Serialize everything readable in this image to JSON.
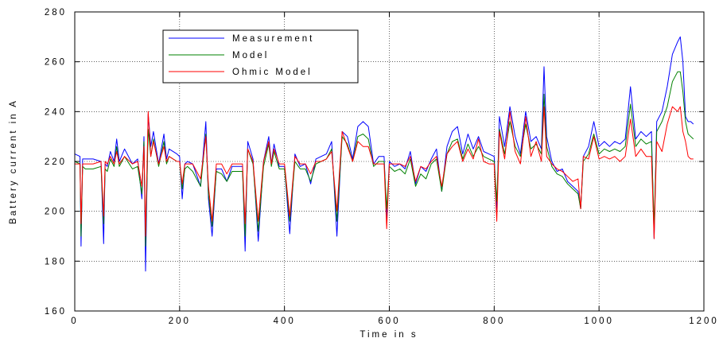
{
  "chart_data": {
    "type": "line",
    "title": "",
    "xlabel": "Time in s",
    "ylabel": "Battery current in A",
    "xlim": [
      0,
      1200
    ],
    "ylim": [
      160,
      280
    ],
    "xticks": [
      0,
      200,
      400,
      600,
      800,
      1000,
      1200
    ],
    "yticks": [
      160,
      180,
      200,
      220,
      240,
      260,
      280
    ],
    "grid": true,
    "legend_position": "top-left",
    "series": [
      {
        "name": "Measurement",
        "color": "#0000ff",
        "x": [
          0,
          10,
          12,
          15,
          20,
          35,
          50,
          55,
          58,
          62,
          68,
          75,
          80,
          85,
          95,
          110,
          120,
          128,
          132,
          135,
          140,
          145,
          150,
          160,
          170,
          175,
          180,
          195,
          200,
          205,
          210,
          215,
          225,
          240,
          250,
          255,
          262,
          270,
          280,
          290,
          300,
          320,
          325,
          330,
          340,
          350,
          360,
          370,
          375,
          380,
          390,
          400,
          410,
          420,
          430,
          440,
          450,
          460,
          470,
          480,
          490,
          500,
          510,
          520,
          530,
          540,
          550,
          560,
          570,
          580,
          590,
          595,
          600,
          610,
          620,
          630,
          640,
          650,
          660,
          670,
          680,
          690,
          700,
          710,
          720,
          730,
          740,
          750,
          760,
          770,
          780,
          790,
          800,
          805,
          810,
          820,
          830,
          840,
          850,
          860,
          870,
          880,
          890,
          895,
          900,
          910,
          920,
          930,
          940,
          950,
          960,
          965,
          970,
          980,
          990,
          1000,
          1010,
          1020,
          1030,
          1040,
          1050,
          1060,
          1070,
          1080,
          1090,
          1100,
          1105,
          1110,
          1120,
          1130,
          1140,
          1150,
          1155,
          1160,
          1165,
          1170,
          1175,
          1180
        ],
        "y": [
          223,
          222,
          186,
          221,
          221,
          221,
          220,
          187,
          219,
          218,
          224,
          220,
          229,
          220,
          225,
          219,
          221,
          205,
          230,
          176,
          239,
          226,
          232,
          219,
          231,
          221,
          225,
          223,
          222,
          205,
          219,
          220,
          219,
          210,
          236,
          205,
          190,
          217,
          217,
          212,
          218,
          218,
          184,
          228,
          221,
          188,
          220,
          230,
          219,
          227,
          218,
          218,
          191,
          223,
          218,
          219,
          211,
          221,
          222,
          223,
          228,
          190,
          232,
          230,
          221,
          234,
          236,
          234,
          219,
          222,
          222,
          197,
          220,
          218,
          219,
          217,
          224,
          211,
          218,
          216,
          221,
          225,
          208,
          226,
          232,
          234,
          223,
          231,
          225,
          230,
          224,
          223,
          222,
          200,
          238,
          226,
          242,
          230,
          223,
          240,
          228,
          230,
          225,
          258,
          230,
          220,
          216,
          217,
          212,
          210,
          208,
          201,
          222,
          226,
          236,
          226,
          228,
          226,
          228,
          227,
          229,
          250,
          229,
          232,
          230,
          232,
          189,
          236,
          240,
          250,
          263,
          268,
          270,
          260,
          238,
          236,
          236,
          235
        ]
      },
      {
        "name": "Model",
        "color": "#008000",
        "x": [
          0,
          10,
          12,
          15,
          20,
          35,
          50,
          55,
          58,
          62,
          68,
          75,
          80,
          85,
          95,
          110,
          120,
          128,
          132,
          135,
          140,
          145,
          150,
          160,
          170,
          175,
          180,
          195,
          200,
          205,
          210,
          215,
          225,
          240,
          250,
          255,
          262,
          270,
          280,
          290,
          300,
          320,
          325,
          330,
          340,
          350,
          360,
          370,
          375,
          380,
          390,
          400,
          410,
          420,
          430,
          440,
          450,
          460,
          470,
          480,
          490,
          500,
          510,
          520,
          530,
          540,
          550,
          560,
          570,
          580,
          590,
          595,
          600,
          610,
          620,
          630,
          640,
          650,
          660,
          670,
          680,
          690,
          700,
          710,
          720,
          730,
          740,
          750,
          760,
          770,
          780,
          790,
          800,
          805,
          810,
          820,
          830,
          840,
          850,
          860,
          870,
          880,
          890,
          895,
          900,
          910,
          920,
          930,
          940,
          950,
          960,
          965,
          970,
          980,
          990,
          1000,
          1010,
          1020,
          1030,
          1040,
          1050,
          1060,
          1070,
          1080,
          1090,
          1100,
          1105,
          1110,
          1120,
          1130,
          1140,
          1150,
          1155,
          1160,
          1165,
          1170,
          1175,
          1180
        ],
        "y": [
          220,
          219,
          190,
          218,
          217,
          217,
          218,
          195,
          217,
          216,
          221,
          218,
          226,
          218,
          222,
          217,
          218,
          207,
          228,
          186,
          233,
          222,
          229,
          218,
          228,
          219,
          222,
          220,
          220,
          209,
          217,
          218,
          216,
          210,
          231,
          207,
          194,
          216,
          215,
          212,
          216,
          216,
          190,
          225,
          219,
          192,
          218,
          227,
          218,
          224,
          217,
          217,
          196,
          220,
          217,
          217,
          212,
          219,
          220,
          221,
          225,
          196,
          230,
          227,
          220,
          230,
          231,
          229,
          218,
          220,
          220,
          201,
          218,
          216,
          217,
          215,
          221,
          210,
          215,
          213,
          219,
          221,
          208,
          223,
          228,
          229,
          221,
          227,
          222,
          226,
          222,
          221,
          220,
          204,
          233,
          223,
          236,
          226,
          222,
          235,
          225,
          227,
          223,
          247,
          226,
          218,
          215,
          214,
          211,
          209,
          207,
          201,
          220,
          223,
          231,
          223,
          225,
          224,
          225,
          224,
          226,
          243,
          226,
          229,
          227,
          228,
          194,
          232,
          236,
          242,
          252,
          256,
          256,
          248,
          236,
          231,
          230,
          229
        ]
      },
      {
        "name": "Ohmic Model",
        "color": "#ff0000",
        "x": [
          0,
          10,
          12,
          15,
          20,
          35,
          50,
          55,
          58,
          62,
          68,
          75,
          80,
          85,
          95,
          110,
          120,
          128,
          132,
          135,
          140,
          145,
          150,
          160,
          170,
          175,
          180,
          195,
          200,
          205,
          210,
          215,
          225,
          240,
          250,
          255,
          262,
          270,
          280,
          290,
          300,
          320,
          325,
          330,
          340,
          350,
          360,
          370,
          375,
          380,
          390,
          400,
          410,
          420,
          430,
          440,
          450,
          460,
          470,
          480,
          490,
          500,
          510,
          520,
          530,
          540,
          550,
          560,
          570,
          580,
          590,
          595,
          600,
          610,
          620,
          630,
          640,
          650,
          660,
          670,
          680,
          690,
          700,
          710,
          720,
          730,
          740,
          750,
          760,
          770,
          780,
          790,
          800,
          805,
          810,
          820,
          830,
          840,
          850,
          860,
          870,
          880,
          890,
          895,
          900,
          910,
          920,
          930,
          940,
          950,
          960,
          965,
          970,
          980,
          990,
          1000,
          1010,
          1020,
          1030,
          1040,
          1050,
          1060,
          1070,
          1080,
          1090,
          1100,
          1105,
          1110,
          1120,
          1130,
          1140,
          1150,
          1155,
          1160,
          1165,
          1170,
          1175,
          1180
        ],
        "y": [
          219,
          219,
          195,
          219,
          219,
          219,
          220,
          198,
          220,
          219,
          222,
          219,
          224,
          219,
          222,
          219,
          220,
          210,
          226,
          190,
          240,
          222,
          228,
          219,
          226,
          220,
          222,
          220,
          220,
          211,
          219,
          219,
          219,
          213,
          230,
          210,
          196,
          219,
          219,
          215,
          219,
          219,
          195,
          225,
          220,
          196,
          220,
          228,
          219,
          225,
          219,
          219,
          198,
          222,
          219,
          219,
          215,
          220,
          220,
          221,
          224,
          200,
          232,
          226,
          220,
          228,
          226,
          226,
          219,
          219,
          219,
          193,
          219,
          219,
          219,
          218,
          222,
          212,
          218,
          217,
          220,
          222,
          210,
          223,
          226,
          228,
          220,
          225,
          221,
          229,
          220,
          219,
          219,
          196,
          232,
          221,
          240,
          224,
          219,
          238,
          222,
          228,
          220,
          242,
          222,
          219,
          217,
          216,
          214,
          212,
          213,
          201,
          222,
          221,
          230,
          221,
          222,
          221,
          222,
          220,
          222,
          237,
          222,
          225,
          222,
          222,
          189,
          228,
          224,
          235,
          242,
          240,
          242,
          232,
          228,
          222,
          221,
          221
        ]
      }
    ]
  }
}
